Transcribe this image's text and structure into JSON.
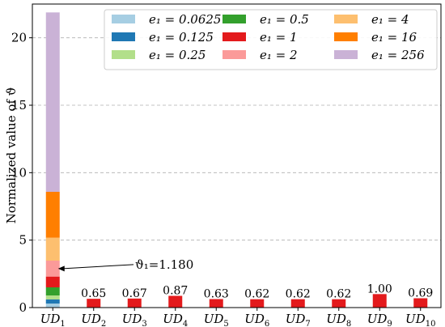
{
  "chart_data": {
    "type": "bar",
    "stacked": true,
    "xlabel": "",
    "ylabel": "Normalized value of ϑ",
    "ylim": [
      0,
      22.5
    ],
    "yticks": [
      0,
      5,
      10,
      15,
      20
    ],
    "grid": "horizontal dashed",
    "legend_position": "top-right",
    "categories": [
      {
        "base": "UD",
        "sub": "1"
      },
      {
        "base": "UD",
        "sub": "2"
      },
      {
        "base": "UD",
        "sub": "3"
      },
      {
        "base": "UD",
        "sub": "4"
      },
      {
        "base": "UD",
        "sub": "5"
      },
      {
        "base": "UD",
        "sub": "6"
      },
      {
        "base": "UD",
        "sub": "7"
      },
      {
        "base": "UD",
        "sub": "8"
      },
      {
        "base": "UD",
        "sub": "9"
      },
      {
        "base": "UD",
        "sub": "10"
      }
    ],
    "series": [
      {
        "name": "e₁ = 0.0625",
        "color": "#a6cee3",
        "values": [
          0.3,
          0,
          0,
          0,
          0,
          0,
          0,
          0,
          0,
          0
        ]
      },
      {
        "name": "e₁ = 0.125",
        "color": "#1f78b4",
        "values": [
          0.3,
          0,
          0,
          0,
          0,
          0,
          0,
          0,
          0,
          0
        ]
      },
      {
        "name": "e₁ = 0.25",
        "color": "#b2df8a",
        "values": [
          0.3,
          0,
          0,
          0,
          0,
          0,
          0,
          0,
          0,
          0
        ]
      },
      {
        "name": "e₁ = 0.5",
        "color": "#33a02c",
        "values": [
          0.6,
          0,
          0,
          0,
          0,
          0,
          0,
          0,
          0,
          0
        ]
      },
      {
        "name": "e₁ = 1",
        "color": "#e31a1c",
        "values": [
          0.8,
          0.65,
          0.67,
          0.87,
          0.63,
          0.62,
          0.62,
          0.62,
          1.0,
          0.69
        ]
      },
      {
        "name": "e₁ = 2",
        "color": "#fb9a99",
        "values": [
          1.18,
          0,
          0,
          0,
          0,
          0,
          0,
          0,
          0,
          0
        ]
      },
      {
        "name": "e₁ = 4",
        "color": "#fdbf6f",
        "values": [
          1.7,
          0,
          0,
          0,
          0,
          0,
          0,
          0,
          0,
          0
        ]
      },
      {
        "name": "e₁ = 16",
        "color": "#ff7f00",
        "values": [
          3.4,
          0,
          0,
          0,
          0,
          0,
          0,
          0,
          0,
          0
        ]
      },
      {
        "name": "e₁ = 256",
        "color": "#cab2d6",
        "values": [
          13.3,
          0,
          0,
          0,
          0,
          0,
          0,
          0,
          0,
          0
        ]
      }
    ],
    "data_labels": [
      "",
      "0.65",
      "0.67",
      "0.87",
      "0.63",
      "0.62",
      "0.62",
      "0.62",
      "1.00",
      "0.69"
    ],
    "annotation": {
      "text": "ϑ₁=1.180",
      "points_to": {
        "category_index": 0,
        "series_index": 5
      }
    }
  }
}
